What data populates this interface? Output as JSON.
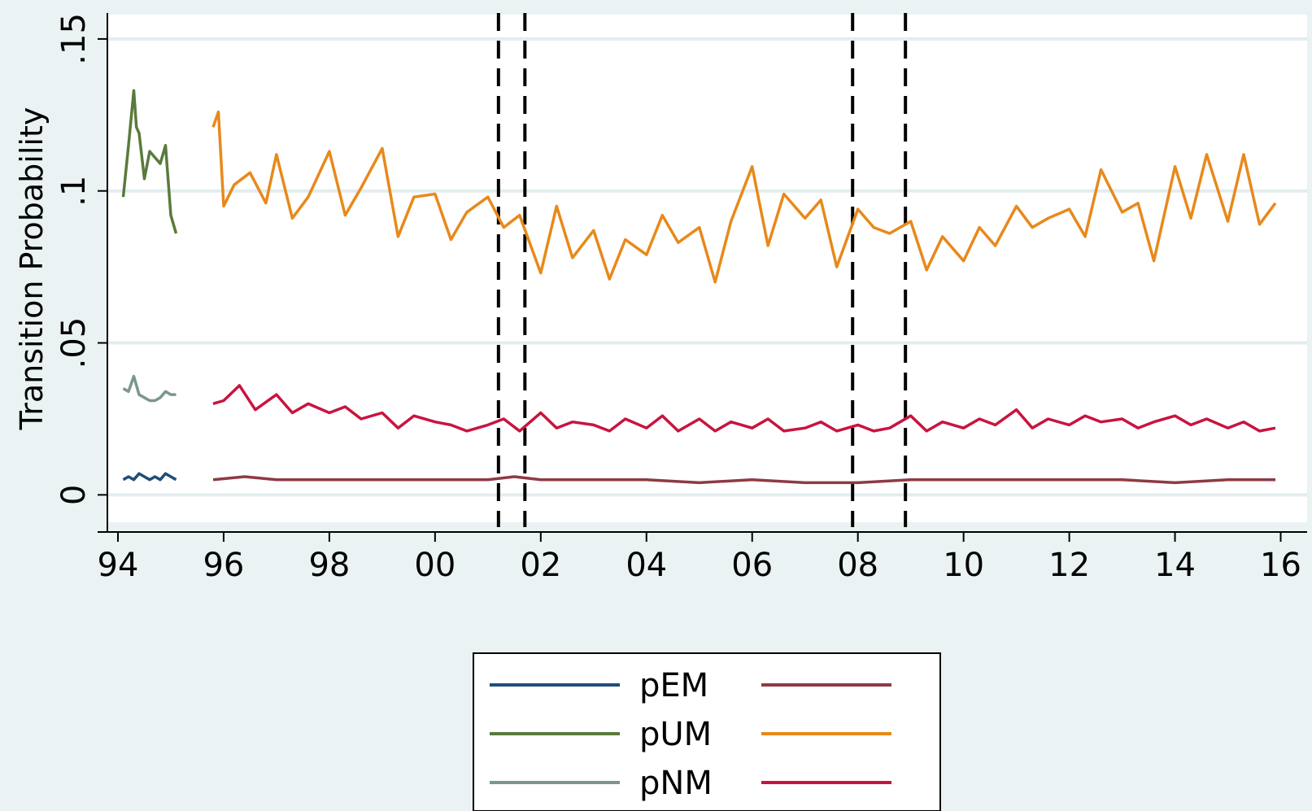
{
  "chart_data": {
    "type": "line",
    "ylabel": "Transition Probability",
    "xlabel": "",
    "x_ticks": [
      "94",
      "96",
      "98",
      "00",
      "02",
      "04",
      "06",
      "08",
      "10",
      "12",
      "14",
      "16"
    ],
    "x_tick_values": [
      1994,
      1996,
      1998,
      2000,
      2002,
      2004,
      2006,
      2008,
      2010,
      2012,
      2014,
      2016
    ],
    "y_ticks": [
      "0",
      ".05",
      ".1",
      ".15"
    ],
    "y_tick_values": [
      0,
      0.05,
      0.1,
      0.15
    ],
    "xlim": [
      1993.8,
      2016.5
    ],
    "ylim": [
      -0.009,
      0.158
    ],
    "grid": true,
    "vertical_reference_lines": [
      2001.2,
      2001.7,
      2007.9,
      2008.9
    ],
    "legend_position": "bottom-center",
    "series": [
      {
        "name": "pEM",
        "color": "#1f4e79",
        "x": [
          1994.1,
          1994.2,
          1994.3,
          1994.4,
          1994.5,
          1994.6,
          1994.7,
          1994.8,
          1994.9,
          1995.0,
          1995.1
        ],
        "y": [
          0.005,
          0.006,
          0.005,
          0.007,
          0.006,
          0.005,
          0.006,
          0.005,
          0.007,
          0.006,
          0.005
        ]
      },
      {
        "name": "",
        "color": "#8e3a45",
        "x": [
          1995.8,
          1996.4,
          1997.0,
          1998.0,
          1999.0,
          2000.0,
          2001.0,
          2001.5,
          2002.0,
          2003.0,
          2004.0,
          2005.0,
          2006.0,
          2007.0,
          2008.0,
          2009.0,
          2010.0,
          2011.0,
          2012.0,
          2013.0,
          2014.0,
          2015.0,
          2015.9
        ],
        "y": [
          0.005,
          0.006,
          0.005,
          0.005,
          0.005,
          0.005,
          0.005,
          0.006,
          0.005,
          0.005,
          0.005,
          0.004,
          0.005,
          0.004,
          0.004,
          0.005,
          0.005,
          0.005,
          0.005,
          0.005,
          0.004,
          0.005,
          0.005
        ]
      },
      {
        "name": "pUM",
        "color": "#5a7a3c",
        "x": [
          1994.1,
          1994.2,
          1994.3,
          1994.35,
          1994.4,
          1994.5,
          1994.6,
          1994.7,
          1994.8,
          1994.9,
          1995.0,
          1995.1
        ],
        "y": [
          0.098,
          0.115,
          0.133,
          0.121,
          0.119,
          0.104,
          0.113,
          0.111,
          0.109,
          0.115,
          0.092,
          0.086
        ]
      },
      {
        "name": "",
        "color": "#e8891b",
        "x": [
          1995.8,
          1995.9,
          1996.0,
          1996.2,
          1996.5,
          1996.8,
          1997.0,
          1997.3,
          1997.6,
          1998.0,
          1998.3,
          1998.6,
          1999.0,
          1999.3,
          1999.6,
          2000.0,
          2000.3,
          2000.6,
          2001.0,
          2001.3,
          2001.6,
          2002.0,
          2002.3,
          2002.6,
          2003.0,
          2003.3,
          2003.6,
          2004.0,
          2004.3,
          2004.6,
          2005.0,
          2005.3,
          2005.6,
          2006.0,
          2006.3,
          2006.6,
          2007.0,
          2007.3,
          2007.6,
          2008.0,
          2008.3,
          2008.6,
          2009.0,
          2009.3,
          2009.6,
          2010.0,
          2010.3,
          2010.6,
          2011.0,
          2011.3,
          2011.6,
          2012.0,
          2012.3,
          2012.6,
          2013.0,
          2013.3,
          2013.6,
          2014.0,
          2014.3,
          2014.6,
          2015.0,
          2015.3,
          2015.6,
          2015.9
        ],
        "y": [
          0.121,
          0.126,
          0.095,
          0.102,
          0.106,
          0.096,
          0.112,
          0.091,
          0.098,
          0.113,
          0.092,
          0.101,
          0.114,
          0.085,
          0.098,
          0.099,
          0.084,
          0.093,
          0.098,
          0.088,
          0.092,
          0.073,
          0.095,
          0.078,
          0.087,
          0.071,
          0.084,
          0.079,
          0.092,
          0.083,
          0.088,
          0.07,
          0.09,
          0.108,
          0.082,
          0.099,
          0.091,
          0.097,
          0.075,
          0.094,
          0.088,
          0.086,
          0.09,
          0.074,
          0.085,
          0.077,
          0.088,
          0.082,
          0.095,
          0.088,
          0.091,
          0.094,
          0.085,
          0.107,
          0.093,
          0.096,
          0.077,
          0.108,
          0.091,
          0.112,
          0.09,
          0.112,
          0.089,
          0.096
        ]
      },
      {
        "name": "pNM",
        "color": "#7a978a",
        "x": [
          1994.1,
          1994.2,
          1994.3,
          1994.4,
          1994.5,
          1994.6,
          1994.7,
          1994.8,
          1994.9,
          1995.0,
          1995.1
        ],
        "y": [
          0.035,
          0.034,
          0.039,
          0.033,
          0.032,
          0.031,
          0.031,
          0.032,
          0.034,
          0.033,
          0.033
        ]
      },
      {
        "name": "",
        "color": "#c8143f",
        "x": [
          1995.8,
          1996.0,
          1996.3,
          1996.6,
          1997.0,
          1997.3,
          1997.6,
          1998.0,
          1998.3,
          1998.6,
          1999.0,
          1999.3,
          1999.6,
          2000.0,
          2000.3,
          2000.6,
          2001.0,
          2001.3,
          2001.6,
          2002.0,
          2002.3,
          2002.6,
          2003.0,
          2003.3,
          2003.6,
          2004.0,
          2004.3,
          2004.6,
          2005.0,
          2005.3,
          2005.6,
          2006.0,
          2006.3,
          2006.6,
          2007.0,
          2007.3,
          2007.6,
          2008.0,
          2008.3,
          2008.6,
          2009.0,
          2009.3,
          2009.6,
          2010.0,
          2010.3,
          2010.6,
          2011.0,
          2011.3,
          2011.6,
          2012.0,
          2012.3,
          2012.6,
          2013.0,
          2013.3,
          2013.6,
          2014.0,
          2014.3,
          2014.6,
          2015.0,
          2015.3,
          2015.6,
          2015.9
        ],
        "y": [
          0.03,
          0.031,
          0.036,
          0.028,
          0.033,
          0.027,
          0.03,
          0.027,
          0.029,
          0.025,
          0.027,
          0.022,
          0.026,
          0.024,
          0.023,
          0.021,
          0.023,
          0.025,
          0.021,
          0.027,
          0.022,
          0.024,
          0.023,
          0.021,
          0.025,
          0.022,
          0.026,
          0.021,
          0.025,
          0.021,
          0.024,
          0.022,
          0.025,
          0.021,
          0.022,
          0.024,
          0.021,
          0.023,
          0.021,
          0.022,
          0.026,
          0.021,
          0.024,
          0.022,
          0.025,
          0.023,
          0.028,
          0.022,
          0.025,
          0.023,
          0.026,
          0.024,
          0.025,
          0.022,
          0.024,
          0.026,
          0.023,
          0.025,
          0.022,
          0.024,
          0.021,
          0.022
        ]
      }
    ],
    "legend": {
      "labels": [
        "pEM",
        "pUM",
        "pNM"
      ],
      "left_colors": [
        "#1f4e79",
        "#5a7a3c",
        "#7a978a"
      ],
      "right_colors": [
        "#8e3a45",
        "#e8891b",
        "#c8143f"
      ]
    }
  }
}
